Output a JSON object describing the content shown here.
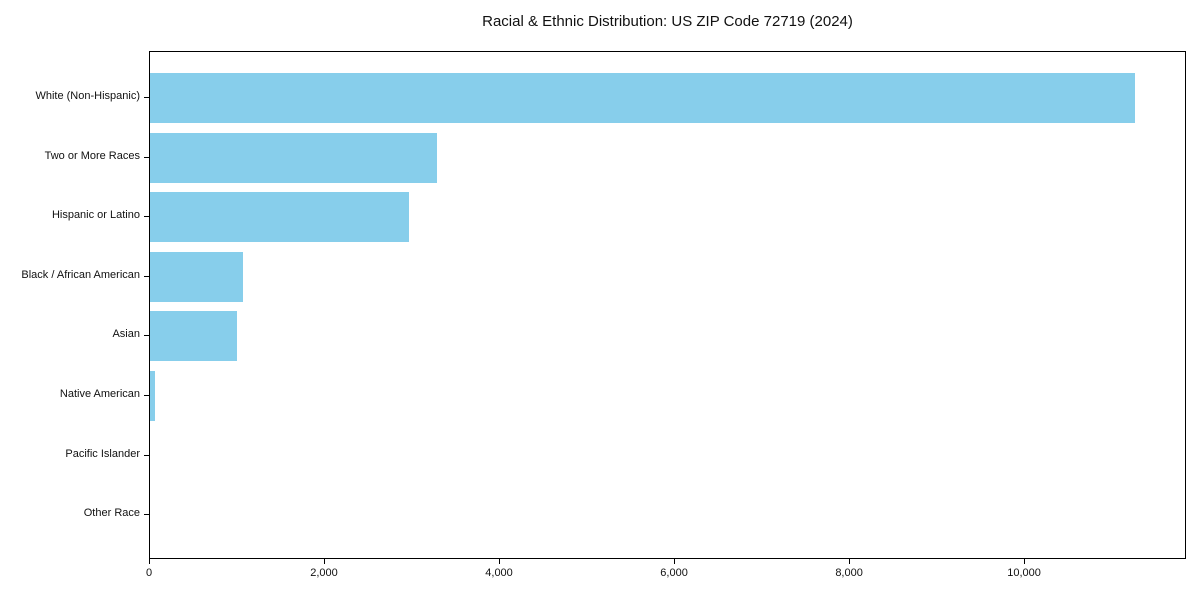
{
  "chart_data": {
    "type": "bar",
    "orientation": "horizontal",
    "title": "Racial & Ethnic Distribution: US ZIP Code 72719 (2024)",
    "categories": [
      "White (Non-Hispanic)",
      "Two or More Races",
      "Hispanic or Latino",
      "Black / African American",
      "Asian",
      "Native American",
      "Pacific Islander",
      "Other Race"
    ],
    "values": [
      11280,
      3290,
      2960,
      1060,
      1000,
      55,
      0,
      0
    ],
    "xlabel": "",
    "ylabel": "",
    "xlim": [
      0,
      11850
    ],
    "xticks": [
      0,
      2000,
      4000,
      6000,
      8000,
      10000
    ],
    "xtick_labels": [
      "0",
      "2,000",
      "4,000",
      "6,000",
      "8,000",
      "10,000"
    ],
    "bar_color": "#87CEEB",
    "background_color": "#ffffff",
    "axis_color": "#000000",
    "grid": false,
    "legend": null
  }
}
